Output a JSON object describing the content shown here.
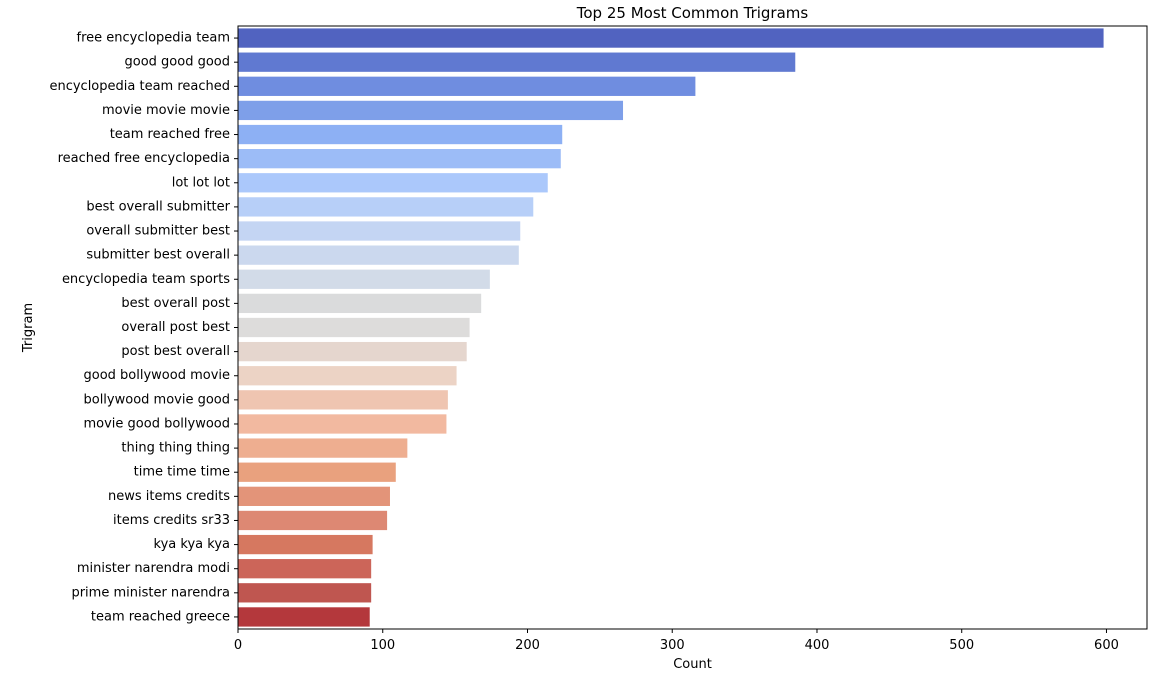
{
  "chart_data": {
    "type": "bar",
    "orientation": "horizontal",
    "title": "Top 25 Most Common Trigrams",
    "xlabel": "Count",
    "ylabel": "Trigram",
    "xlim": [
      0,
      628
    ],
    "xticks": [
      0,
      100,
      200,
      300,
      400,
      500,
      600
    ],
    "grid": false,
    "palette": "coolwarm",
    "categories": [
      "free encyclopedia team",
      "good good good",
      "encyclopedia team reached",
      "movie movie movie",
      "team reached free",
      "reached free encyclopedia",
      "lot lot lot",
      "best overall submitter",
      "overall submitter best",
      "submitter best overall",
      "encyclopedia team sports",
      "best overall post",
      "overall post best",
      "post best overall",
      "good bollywood movie",
      "bollywood movie good",
      "movie good bollywood",
      "thing thing thing",
      "time time time",
      "news items credits",
      "items credits sr33",
      "kya kya kya",
      "minister narendra modi",
      "prime minister narendra",
      "team reached greece"
    ],
    "values": [
      598,
      385,
      316,
      266,
      224,
      223,
      214,
      204,
      195,
      194,
      174,
      168,
      160,
      158,
      151,
      145,
      144,
      117,
      109,
      105,
      103,
      93,
      92,
      92,
      91
    ],
    "colors": [
      "#5163c0",
      "#6079d1",
      "#6f8de0",
      "#7e9fe9",
      "#8db0f4",
      "#9cbcf7",
      "#abc8fb",
      "#b7cff8",
      "#c4d5f3",
      "#cbd8ee",
      "#d2dbe8",
      "#dadbdc",
      "#dddcdb",
      "#e5d6ce",
      "#ecd3c5",
      "#efc5b1",
      "#f2b9a0",
      "#eeae90",
      "#e9a17e",
      "#e39479",
      "#dd8873",
      "#d67860",
      "#cc6559",
      "#bf5650",
      "#b4383c"
    ]
  }
}
